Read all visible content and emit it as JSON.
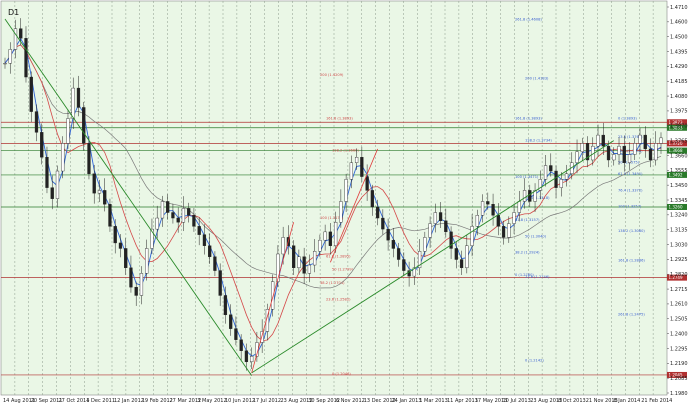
{
  "chart_data": {
    "type": "candlestick",
    "instrument_timeframe": "D1",
    "background_color": "#eaf7e6",
    "grid": true,
    "grid_style": "dashed vertical",
    "ylim": [
      1.19,
      1.475
    ],
    "x_ticks": [
      "14 Aug 2011",
      "20 Sep 2011",
      "27 Oct 2011",
      "4 Dec 2011",
      "12 Jan 2012",
      "19 Feb 2012",
      "27 Mar 2012",
      "3 May 2012",
      "10 Jun 2012",
      "17 Jul 2012",
      "23 Aug 2012",
      "30 Sep 2012",
      "6 Nov 2012",
      "13 Dec 2012",
      "24 Jan 2013",
      "1 Mar 2013",
      "11 Apr 2013",
      "17 May 2013",
      "10 Jul 2013",
      "23 Aug 2013",
      "8 Oct 2013",
      "21 Nov 2013",
      "8 Jan 2014",
      "21 Feb 2014"
    ],
    "y_ticks": [
      "1.4710",
      "1.4600",
      "1.4500",
      "1.4395",
      "1.4290",
      "1.4185",
      "1.4080",
      "1.3975",
      "1.3870",
      "1.3765",
      "1.3660",
      "1.3555",
      "1.3450",
      "1.3345",
      "1.3240",
      "1.3135",
      "1.3030",
      "1.2925",
      "1.2820",
      "1.2715",
      "1.2610",
      "1.2505",
      "1.2400",
      "1.2295",
      "1.2190",
      "1.2085",
      "1.1980"
    ],
    "price_levels": [
      {
        "value": 1.3873,
        "label": "1.3873",
        "color": "#b03030"
      },
      {
        "value": 1.3833,
        "label": "1.3833",
        "color": "#2a7a2a"
      },
      {
        "value": 1.372,
        "label": "1.3720",
        "color": "#b03030"
      },
      {
        "value": 1.3668,
        "label": "1.3668",
        "color": "#2a7a2a"
      },
      {
        "value": 1.3492,
        "label": "1.3492",
        "color": "#2a7a2a"
      },
      {
        "value": 1.326,
        "label": "1.3260",
        "color": "#2a7a2a"
      },
      {
        "value": 1.2749,
        "label": "1.2749",
        "color": "#b03030"
      },
      {
        "value": 1.2045,
        "label": "1.2045",
        "color": "#b03030"
      }
    ],
    "fib_labels_blue": [
      {
        "value": 1.4608,
        "text": "261.8 (1.4608)"
      },
      {
        "value": 1.4183,
        "text": "200 (1.4183)"
      },
      {
        "value": 1.3893,
        "text": "161.8 (1.3893)"
      },
      {
        "value": 1.3734,
        "text": "138.2 (1.3734)"
      },
      {
        "value": 1.3471,
        "text": "100 (1.3471)"
      },
      {
        "value": 1.3318,
        "text": "76.4 (1.3318)"
      },
      {
        "value": 1.3157,
        "text": "61.8 (1.3157)"
      },
      {
        "value": 1.304,
        "text": "50 (1.3040)"
      },
      {
        "value": 1.2924,
        "text": "38.2 (1.2924)"
      },
      {
        "value": 1.2746,
        "text": "23.6 (1.2746)"
      },
      {
        "value": 1.276,
        "text": "0 (1.2760)"
      },
      {
        "value": 1.2142,
        "text": "0 (1.2142)"
      }
    ],
    "fib_labels_right": [
      {
        "value": 1.3893,
        "text": "0 (1.3893)"
      },
      {
        "value": 1.376,
        "text": "23.6 (1.3760)"
      },
      {
        "value": 1.3658,
        "text": "38.2 (1.3658)"
      },
      {
        "value": 1.3575,
        "text": "50 (1.3575)"
      },
      {
        "value": 1.3491,
        "text": "61.8 (1.3491)"
      },
      {
        "value": 1.3372,
        "text": "76.4 (1.3372)"
      },
      {
        "value": 1.3257,
        "text": "100 (1.3257)"
      },
      {
        "value": 1.308,
        "text": "138.2 (1.3080)"
      },
      {
        "value": 1.2866,
        "text": "161.8 (1.2866)"
      },
      {
        "value": 1.2475,
        "text": "261.8 (1.2475)"
      }
    ],
    "fib_labels_red": [
      {
        "value": 1.4209,
        "text": "200 (1.4209)"
      },
      {
        "value": 1.3893,
        "text": "161.8 (1.3893)"
      },
      {
        "value": 1.366,
        "text": "138.2 (1.3660)"
      },
      {
        "value": 1.3173,
        "text": "100 (1.3173)"
      },
      {
        "value": 1.2895,
        "text": "61.8 (1.2895)"
      },
      {
        "value": 1.2799,
        "text": "50 (1.2799)"
      },
      {
        "value": 1.2704,
        "text": "38.2 (1.2704)"
      },
      {
        "value": 1.2582,
        "text": "23.6 (1.2582)"
      },
      {
        "value": 1.2046,
        "text": "0 (1.2046)"
      }
    ],
    "price_path": [
      [
        0,
        1.43
      ],
      [
        1,
        1.44
      ],
      [
        2,
        1.455
      ],
      [
        3,
        1.448
      ],
      [
        4,
        1.42
      ],
      [
        5,
        1.395
      ],
      [
        6,
        1.38
      ],
      [
        7,
        1.362
      ],
      [
        8,
        1.34
      ],
      [
        9,
        1.332
      ],
      [
        10,
        1.352
      ],
      [
        11,
        1.372
      ],
      [
        12,
        1.39
      ],
      [
        13,
        1.412
      ],
      [
        14,
        1.398
      ],
      [
        15,
        1.372
      ],
      [
        16,
        1.35
      ],
      [
        17,
        1.336
      ],
      [
        18,
        1.338
      ],
      [
        19,
        1.328
      ],
      [
        20,
        1.312
      ],
      [
        21,
        1.3
      ],
      [
        22,
        1.296
      ],
      [
        23,
        1.282
      ],
      [
        24,
        1.268
      ],
      [
        25,
        1.262
      ],
      [
        26,
        1.278
      ],
      [
        27,
        1.296
      ],
      [
        28,
        1.31
      ],
      [
        29,
        1.318
      ],
      [
        30,
        1.33
      ],
      [
        31,
        1.322
      ],
      [
        32,
        1.318
      ],
      [
        33,
        1.315
      ],
      [
        34,
        1.325
      ],
      [
        35,
        1.32
      ],
      [
        36,
        1.312
      ],
      [
        37,
        1.306
      ],
      [
        38,
        1.298
      ],
      [
        39,
        1.29
      ],
      [
        40,
        1.28
      ],
      [
        41,
        1.262
      ],
      [
        42,
        1.248
      ],
      [
        43,
        1.238
      ],
      [
        44,
        1.23
      ],
      [
        45,
        1.222
      ],
      [
        46,
        1.214
      ],
      [
        47,
        1.218
      ],
      [
        48,
        1.228
      ],
      [
        49,
        1.236
      ],
      [
        50,
        1.252
      ],
      [
        51,
        1.272
      ],
      [
        52,
        1.292
      ],
      [
        53,
        1.304
      ],
      [
        54,
        1.298
      ],
      [
        55,
        1.282
      ],
      [
        56,
        1.29
      ],
      [
        57,
        1.278
      ],
      [
        58,
        1.284
      ],
      [
        59,
        1.294
      ],
      [
        60,
        1.302
      ],
      [
        61,
        1.308
      ],
      [
        62,
        1.298
      ],
      [
        63,
        1.315
      ],
      [
        64,
        1.33
      ],
      [
        65,
        1.346
      ],
      [
        66,
        1.358
      ],
      [
        67,
        1.362
      ],
      [
        68,
        1.348
      ],
      [
        69,
        1.338
      ],
      [
        70,
        1.326
      ],
      [
        71,
        1.318
      ],
      [
        72,
        1.31
      ],
      [
        73,
        1.302
      ],
      [
        74,
        1.296
      ],
      [
        75,
        1.288
      ],
      [
        76,
        1.28
      ],
      [
        77,
        1.276
      ],
      [
        78,
        1.282
      ],
      [
        79,
        1.294
      ],
      [
        80,
        1.304
      ],
      [
        81,
        1.314
      ],
      [
        82,
        1.322
      ],
      [
        83,
        1.316
      ],
      [
        84,
        1.308
      ],
      [
        85,
        1.296
      ],
      [
        86,
        1.288
      ],
      [
        87,
        1.282
      ],
      [
        88,
        1.298
      ],
      [
        89,
        1.312
      ],
      [
        90,
        1.32
      ],
      [
        91,
        1.33
      ],
      [
        92,
        1.328
      ],
      [
        93,
        1.32
      ],
      [
        94,
        1.312
      ],
      [
        95,
        1.304
      ],
      [
        96,
        1.314
      ],
      [
        97,
        1.322
      ],
      [
        98,
        1.33
      ],
      [
        99,
        1.338
      ],
      [
        100,
        1.33
      ],
      [
        101,
        1.338
      ],
      [
        102,
        1.346
      ],
      [
        103,
        1.356
      ],
      [
        104,
        1.352
      ],
      [
        105,
        1.34
      ],
      [
        106,
        1.346
      ],
      [
        107,
        1.35
      ],
      [
        108,
        1.358
      ],
      [
        109,
        1.366
      ],
      [
        110,
        1.372
      ],
      [
        111,
        1.36
      ],
      [
        112,
        1.37
      ],
      [
        113,
        1.378
      ],
      [
        114,
        1.37
      ],
      [
        115,
        1.36
      ],
      [
        116,
        1.364
      ],
      [
        117,
        1.37
      ],
      [
        118,
        1.358
      ],
      [
        119,
        1.364
      ],
      [
        120,
        1.372
      ],
      [
        121,
        1.378
      ],
      [
        122,
        1.368
      ],
      [
        123,
        1.36
      ],
      [
        124,
        1.372
      ],
      [
        125,
        1.376
      ]
    ],
    "ma_blue_color": "#2f64d6",
    "ma_red_color": "#d44848",
    "ma_gray_color": "#7a7a7a",
    "trend_line_color": "#2a8a2a",
    "arrow_color": "#e03c3c"
  }
}
